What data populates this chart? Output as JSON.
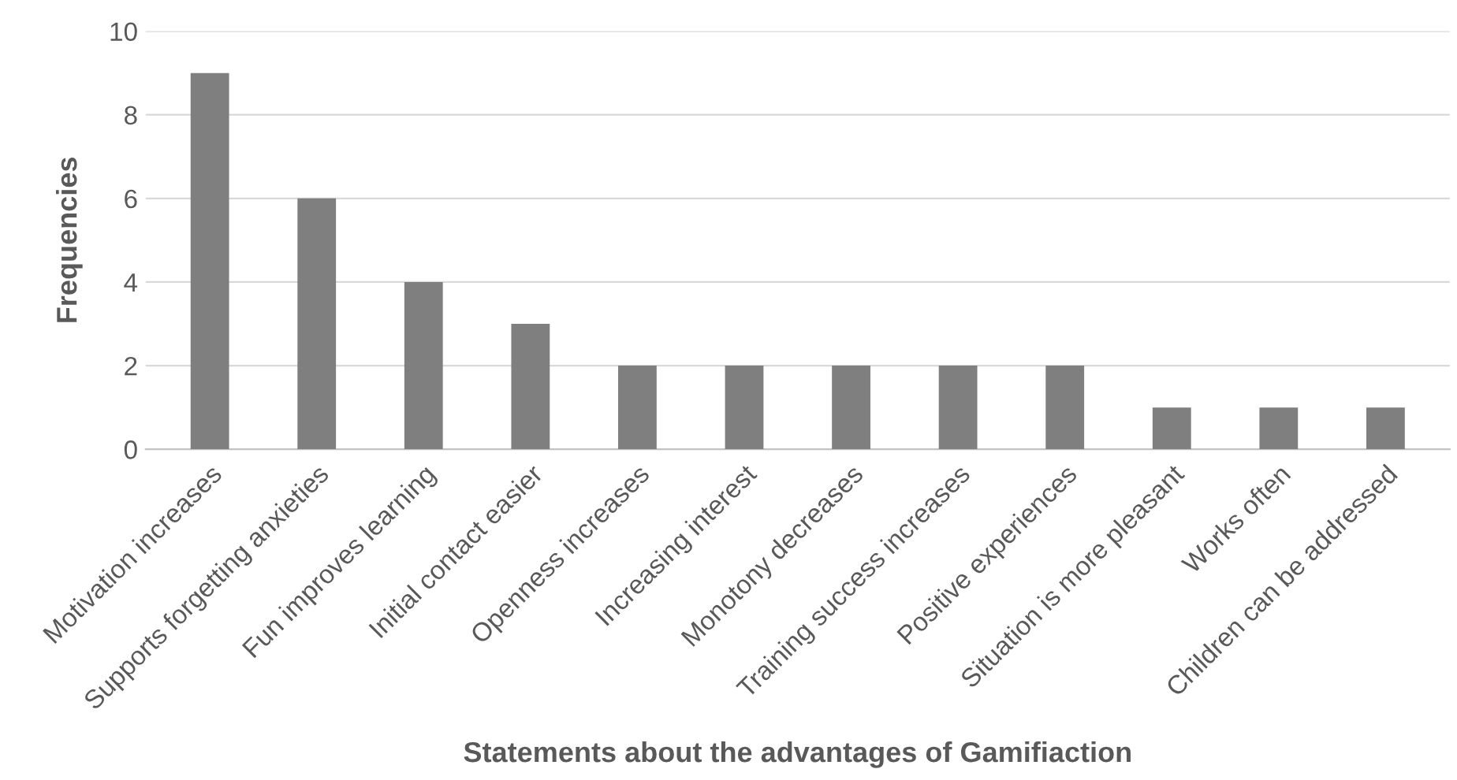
{
  "chart_data": {
    "type": "bar",
    "xlabel": "Statements about the advantages of Gamifiaction",
    "ylabel": "Frequencies",
    "categories": [
      "Motivation increases",
      "Supports forgetting anxieties",
      "Fun improves learning",
      "Initial contact easier",
      "Openness increases",
      "Increasing interest",
      "Monotony decreases",
      "Training success increases",
      "Positive experiences",
      "Situation is more pleasant",
      "Works often",
      "Children can be addressed"
    ],
    "values": [
      9,
      6,
      4,
      3,
      2,
      2,
      2,
      2,
      2,
      1,
      1,
      1
    ],
    "color": "#7f7f7f",
    "ylim": [
      0,
      10
    ],
    "yticks": [
      0,
      2,
      4,
      6,
      8,
      10
    ],
    "grid": "y"
  }
}
